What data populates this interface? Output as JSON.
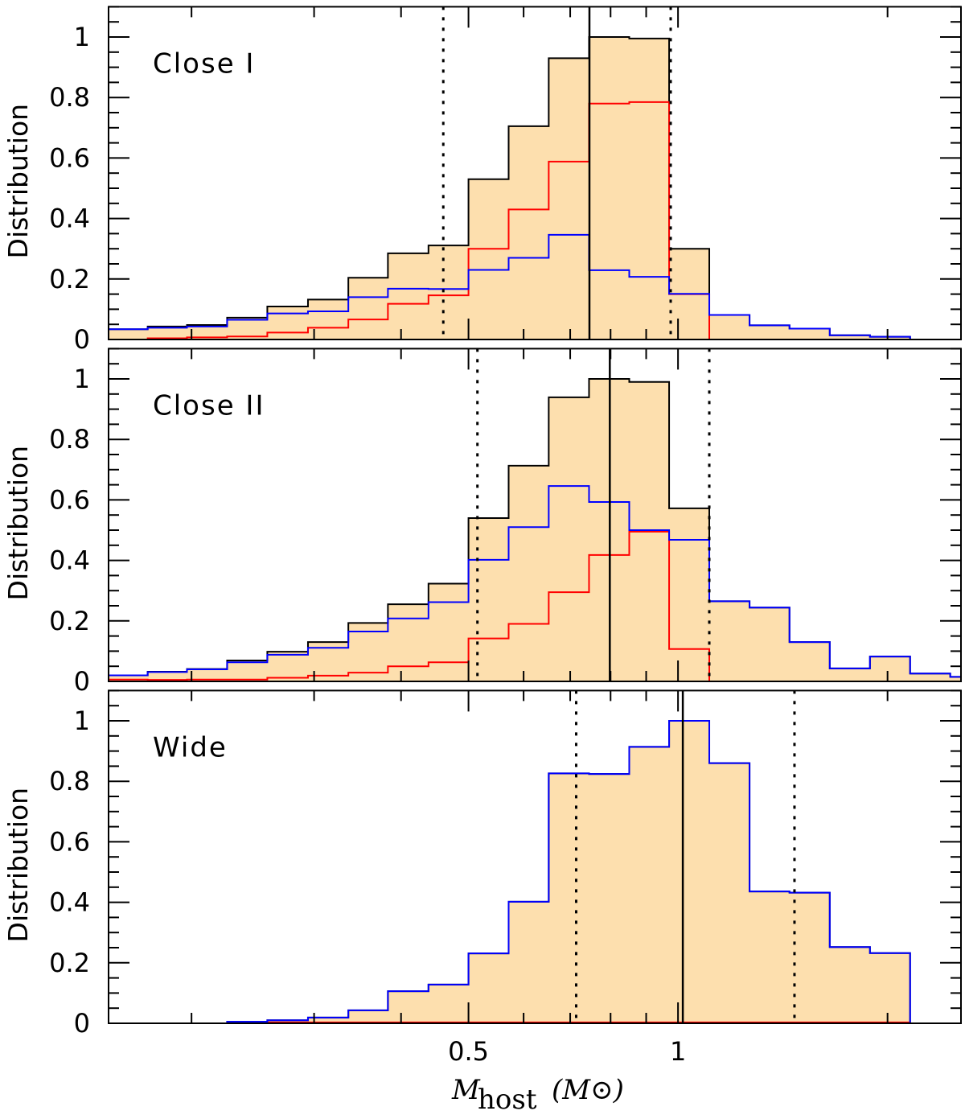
{
  "colors": {
    "fill": "#fddfae",
    "total": "#000000",
    "blue": "#0000ff",
    "red": "#ff0000"
  },
  "x_axis": {
    "label_main": "M",
    "label_sub": "host",
    "label_unit": "(M⊙)",
    "scale": "log",
    "xlim": [
      0.152,
      2.55
    ],
    "major_ticks": [
      0.5,
      1
    ],
    "major_tick_labels": [
      "0.5",
      "1"
    ],
    "minor_ticks": [
      0.2,
      0.3,
      0.4,
      0.6,
      0.7,
      0.8,
      0.9,
      2
    ]
  },
  "y_axis": {
    "label": "Distribution",
    "ylim": [
      0,
      1.1
    ],
    "ticks": [
      0,
      0.2,
      0.4,
      0.6,
      0.8,
      1
    ],
    "tick_labels": [
      "0",
      "0.2",
      "0.4",
      "0.6",
      "0.8",
      "1"
    ]
  },
  "bin_edges": [
    0.152,
    0.173,
    0.197,
    0.225,
    0.257,
    0.294,
    0.336,
    0.383,
    0.438,
    0.5,
    0.571,
    0.652,
    0.745,
    0.851,
    0.971,
    1.109,
    1.267,
    1.446,
    1.652,
    1.887,
    2.155,
    2.461,
    2.55
  ],
  "chart_data": [
    {
      "type": "bar",
      "title": "Close I",
      "xlabel": "M_host (M_sun)",
      "ylabel": "Distribution",
      "ylim": [
        0,
        1.1
      ],
      "series": [
        {
          "name": "total",
          "color": "#000000",
          "values": [
            0.034,
            0.043,
            0.048,
            0.072,
            0.109,
            0.132,
            0.204,
            0.285,
            0.311,
            0.53,
            0.705,
            0.93,
            1.0,
            0.995,
            0.3,
            0.081,
            0.047,
            0.036,
            0.014,
            0.009,
            0,
            0
          ]
        },
        {
          "name": "red",
          "color": "#ff0000",
          "values": [
            0,
            0.004,
            0.007,
            0.01,
            0.023,
            0.039,
            0.066,
            0.118,
            0.146,
            0.3,
            0.43,
            0.588,
            0.78,
            0.785,
            0.15,
            0,
            0,
            0,
            0,
            0,
            0,
            0
          ]
        },
        {
          "name": "blue",
          "color": "#0000ff",
          "values": [
            0.034,
            0.039,
            0.043,
            0.065,
            0.086,
            0.093,
            0.14,
            0.168,
            0.167,
            0.23,
            0.27,
            0.346,
            0.229,
            0.207,
            0.151,
            0.081,
            0.047,
            0.036,
            0.014,
            0.009,
            0,
            0
          ]
        }
      ],
      "median": 0.746,
      "interval": [
        0.46,
        0.976
      ]
    },
    {
      "type": "bar",
      "title": "Close II",
      "xlabel": "M_host (M_sun)",
      "ylabel": "Distribution",
      "ylim": [
        0,
        1.1
      ],
      "series": [
        {
          "name": "total",
          "color": "#000000",
          "values": [
            0.02,
            0.032,
            0.041,
            0.069,
            0.098,
            0.13,
            0.193,
            0.255,
            0.323,
            0.54,
            0.713,
            0.939,
            1.0,
            0.99,
            0.572,
            0.265,
            0.244,
            0.13,
            0.043,
            0.082,
            0.026,
            0.015
          ]
        },
        {
          "name": "red",
          "color": "#ff0000",
          "values": [
            0.006,
            0.005,
            0.006,
            0.006,
            0.012,
            0.019,
            0.029,
            0.05,
            0.063,
            0.142,
            0.19,
            0.295,
            0.418,
            0.495,
            0.107,
            0,
            0,
            0,
            0,
            0,
            0,
            0
          ]
        },
        {
          "name": "blue",
          "color": "#0000ff",
          "values": [
            0.02,
            0.031,
            0.04,
            0.063,
            0.088,
            0.111,
            0.165,
            0.208,
            0.262,
            0.402,
            0.51,
            0.646,
            0.593,
            0.5,
            0.468,
            0.265,
            0.244,
            0.13,
            0.043,
            0.082,
            0.026,
            0.015
          ]
        }
      ],
      "median": 0.798,
      "interval": [
        0.515,
        1.109
      ]
    },
    {
      "type": "bar",
      "title": "Wide",
      "xlabel": "M_host (M_sun)",
      "ylabel": "Distribution",
      "ylim": [
        0,
        1.1
      ],
      "series": [
        {
          "name": "total",
          "color": "#000000",
          "values": [
            0,
            0,
            0,
            0.005,
            0.01,
            0.019,
            0.043,
            0.106,
            0.128,
            0.231,
            0.402,
            0.826,
            0.824,
            0.914,
            1.0,
            0.86,
            0.436,
            0.432,
            0.252,
            0.232,
            0,
            0
          ]
        },
        {
          "name": "red",
          "color": "#ff0000",
          "values": [
            0,
            0,
            0,
            0,
            0.003,
            0.003,
            0.003,
            0.003,
            0.003,
            0.003,
            0.003,
            0.003,
            0.003,
            0.003,
            0.003,
            0.003,
            0.003,
            0.003,
            0.003,
            0.003,
            0,
            0
          ]
        },
        {
          "name": "blue",
          "color": "#0000ff",
          "values": [
            0,
            0,
            0,
            0.005,
            0.01,
            0.019,
            0.043,
            0.106,
            0.128,
            0.231,
            0.402,
            0.826,
            0.824,
            0.914,
            1.0,
            0.86,
            0.436,
            0.432,
            0.252,
            0.232,
            0,
            0
          ]
        }
      ],
      "median": 1.016,
      "interval": [
        0.714,
        1.47
      ]
    }
  ]
}
